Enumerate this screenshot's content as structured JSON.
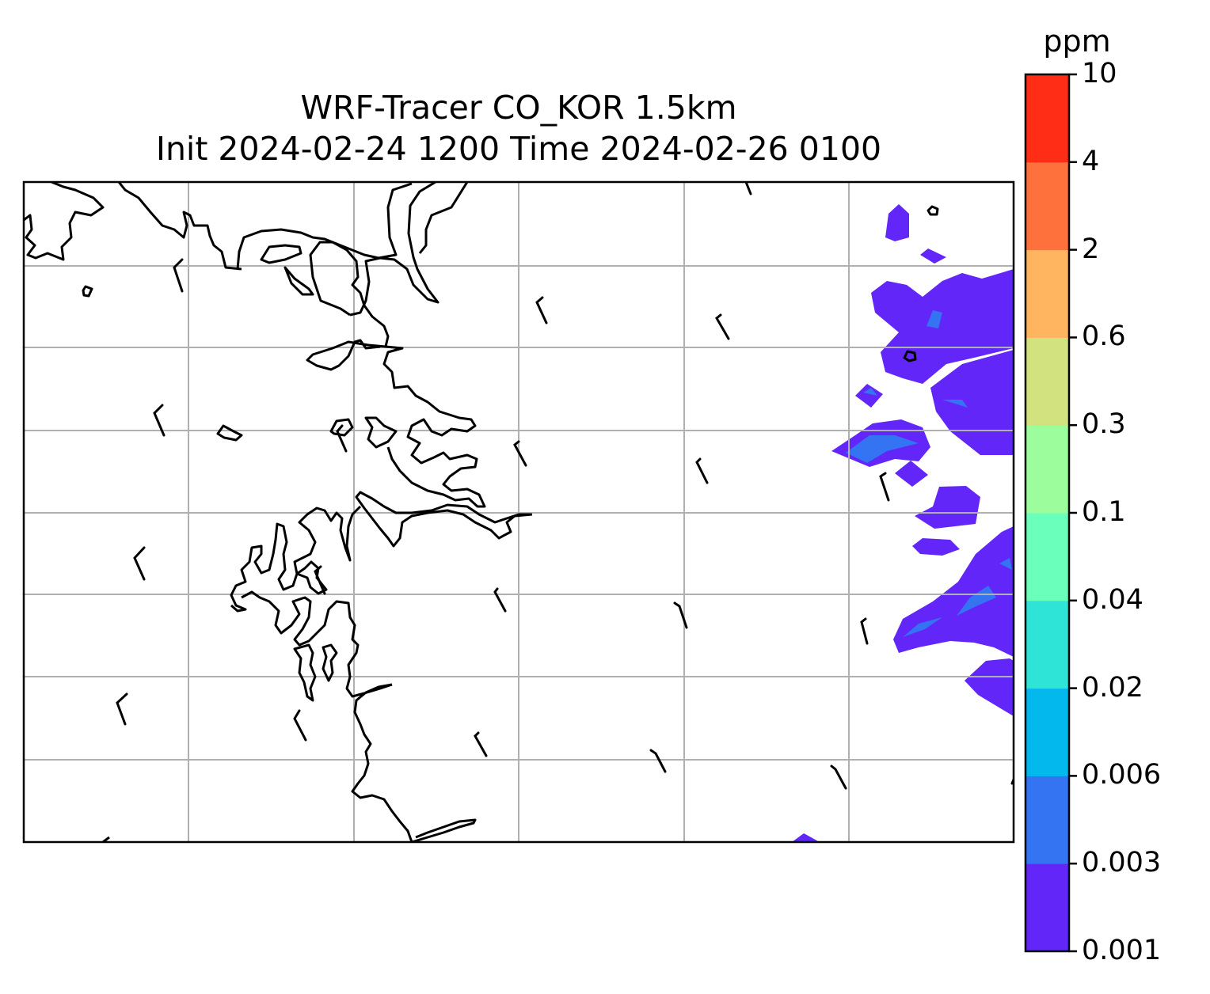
{
  "title": {
    "line1": "WRF-Tracer CO_KOR 1.5km",
    "line2": "Init 2024-02-24 1200 Time 2024-02-26 0100"
  },
  "colorbar": {
    "unit": "ppm",
    "levels": [
      "0.001",
      "0.003",
      "0.006",
      "0.02",
      "0.04",
      "0.1",
      "0.3",
      "0.6",
      "2",
      "4",
      "10"
    ],
    "colors": [
      "#6226f9",
      "#3473f2",
      "#02b8ec",
      "#2ee4d6",
      "#6affbb",
      "#9cfd9d",
      "#d1e27f",
      "#ffb45f",
      "#fe713c",
      "#ff2c16"
    ]
  },
  "map": {
    "gridlines": true,
    "coastline_color": "#000000",
    "grid_color": "#b0b0b0"
  }
}
